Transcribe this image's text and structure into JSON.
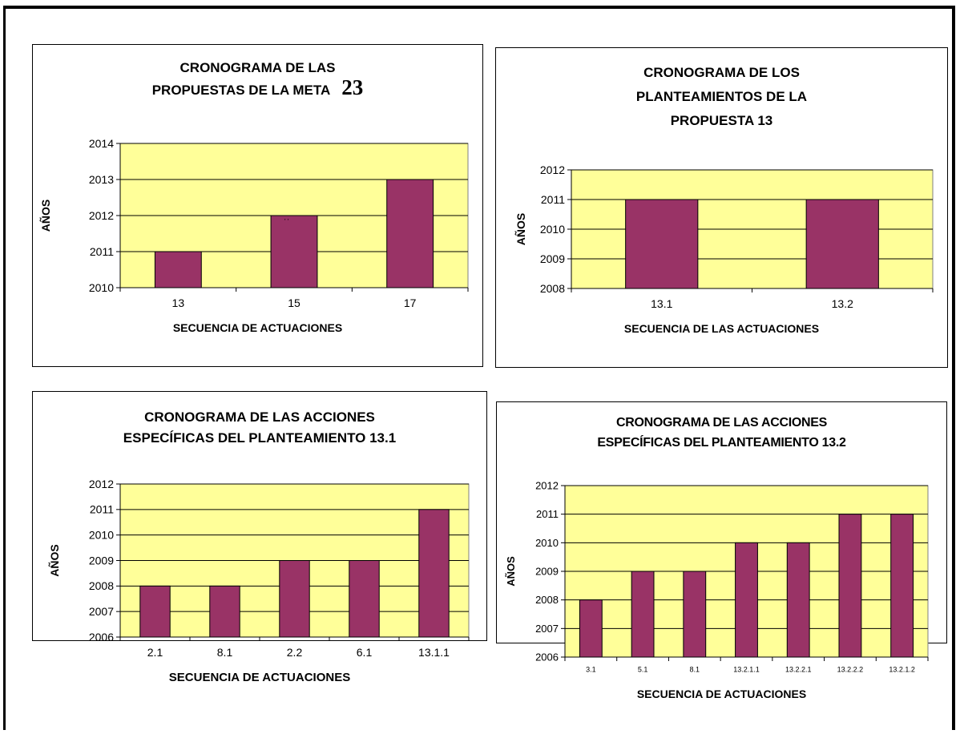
{
  "chart_data": [
    {
      "type": "bar",
      "title_lines": [
        "CRONOGRAMA DE LAS",
        "PROPUESTAS DE LA META"
      ],
      "title_suffix": "23",
      "xlabel": "SECUENCIA DE ACTUACIONES",
      "ylabel": "AÑOS",
      "categories": [
        "13",
        "15",
        "17"
      ],
      "values": [
        2011,
        2012,
        2013
      ],
      "ylim": [
        2010,
        2014
      ],
      "yticks": [
        "2010",
        "2011",
        "2012",
        "2013",
        "2014"
      ],
      "grid": true,
      "plot_color": "#ffff99",
      "bar_color": "#993366",
      "annotation": "' '"
    },
    {
      "type": "bar",
      "title_lines": [
        "CRONOGRAMA DE LOS",
        "PLANTEAMIENTOS DE LA",
        "PROPUESTA 13"
      ],
      "xlabel": "SECUENCIA DE LAS ACTUACIONES",
      "ylabel": "AÑOS",
      "categories": [
        "13.1",
        "13.2"
      ],
      "values": [
        2011,
        2011
      ],
      "ylim": [
        2008,
        2012
      ],
      "yticks": [
        "2008",
        "2009",
        "2010",
        "2011",
        "2012"
      ],
      "grid": true,
      "plot_color": "#ffff99",
      "bar_color": "#993366"
    },
    {
      "type": "bar",
      "title_lines": [
        "CRONOGRAMA DE LAS ACCIONES",
        "ESPECÍFICAS DEL PLANTEAMIENTO 13.1"
      ],
      "xlabel": "SECUENCIA DE ACTUACIONES",
      "ylabel": "AÑOS",
      "categories": [
        "2.1",
        "8.1",
        "2.2",
        "6.1",
        "13.1.1"
      ],
      "values": [
        2008,
        2008,
        2009,
        2009,
        2011
      ],
      "ylim": [
        2006,
        2012
      ],
      "yticks": [
        "2006",
        "2007",
        "2008",
        "2009",
        "2010",
        "2011",
        "2012"
      ],
      "grid": true,
      "plot_color": "#ffff99",
      "bar_color": "#993366"
    },
    {
      "type": "bar",
      "title_lines": [
        "CRONOGRAMA DE LAS ACCIONES",
        "ESPECÍFICAS DEL PLANTEAMIENTO 13.2"
      ],
      "xlabel": "SECUENCIA DE ACTUACIONES",
      "ylabel": "AÑOS",
      "categories": [
        "3.1",
        "5.1",
        "8.1",
        "13.2.1.1",
        "13.2.2.1",
        "13.2.2.2",
        "13.2.1.2"
      ],
      "values": [
        2008,
        2009,
        2009,
        2010,
        2010,
        2011,
        2011
      ],
      "ylim": [
        2006,
        2012
      ],
      "yticks": [
        "2006",
        "2007",
        "2008",
        "2009",
        "2010",
        "2011",
        "2012"
      ],
      "grid": true,
      "plot_color": "#ffff99",
      "bar_color": "#993366"
    }
  ]
}
